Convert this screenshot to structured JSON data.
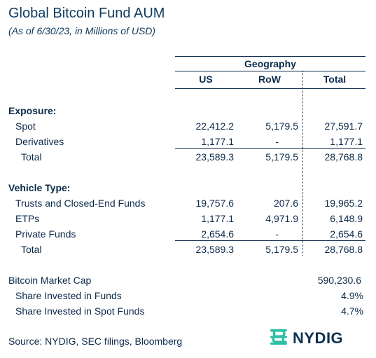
{
  "title": "Global Bitcoin Fund AUM",
  "subtitle": "(As of 6/30/23, in Millions of USD)",
  "header": {
    "group_label": "Geography",
    "columns": [
      "US",
      "RoW",
      "Total"
    ]
  },
  "exposure": {
    "heading": "Exposure:",
    "rows": [
      {
        "label": "Spot",
        "us": "22,412.2",
        "row": "5,179.5",
        "total": "27,591.7"
      },
      {
        "label": "Derivatives",
        "us": "1,177.1",
        "row": "-",
        "total": "1,177.1"
      }
    ],
    "total": {
      "label": "Total",
      "us": "23,589.3",
      "row": "5,179.5",
      "total": "28,768.8"
    }
  },
  "vehicle": {
    "heading": "Vehicle Type:",
    "rows": [
      {
        "label": "Trusts and Closed-End Funds",
        "us": "19,757.6",
        "row": "207.6",
        "total": "19,965.2"
      },
      {
        "label": "ETPs",
        "us": "1,177.1",
        "row": "4,971.9",
        "total": "6,148.9"
      },
      {
        "label": "Private Funds",
        "us": "2,654.6",
        "row": "-",
        "total": "2,654.6"
      }
    ],
    "total": {
      "label": "Total",
      "us": "23,589.3",
      "row": "5,179.5",
      "total": "28,768.8"
    }
  },
  "market": {
    "cap_label": "Bitcoin Market Cap",
    "cap_value": "590,230.6",
    "share_funds_label": "Share Invested in Funds",
    "share_funds_value": "4.9%",
    "share_spot_label": "Share Invested in Spot Funds",
    "share_spot_value": "4.7%"
  },
  "source": "Source: NYDIG, SEC filings, Bloomberg",
  "logo": {
    "text": "NYDIG",
    "icon": "nydig-logo-icon",
    "color": "#2bbfa5"
  }
}
